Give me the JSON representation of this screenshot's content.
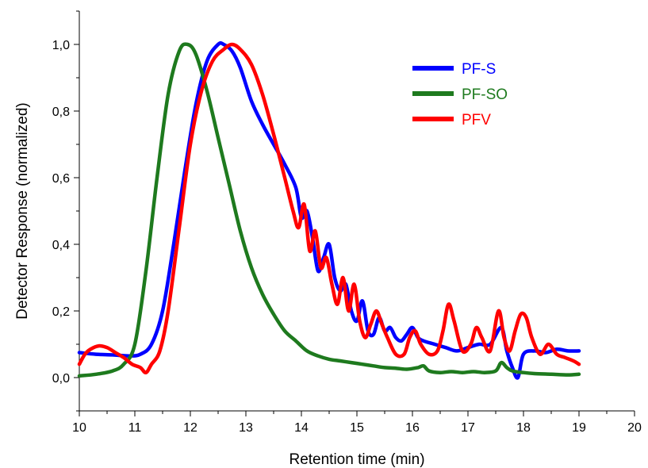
{
  "chart_data": {
    "type": "line",
    "title": "",
    "xlabel": "Retention time (min)",
    "ylabel": "Detector Response (normalized)",
    "xlim": [
      10,
      20
    ],
    "ylim": [
      -0.1,
      1.1
    ],
    "x_ticks": [
      10,
      11,
      12,
      13,
      14,
      15,
      16,
      17,
      18,
      19,
      20
    ],
    "x_tick_labels": [
      "10",
      "11",
      "12",
      "13",
      "14",
      "15",
      "16",
      "17",
      "18",
      "19",
      "20"
    ],
    "y_ticks": [
      0.0,
      0.2,
      0.4,
      0.6,
      0.8,
      1.0
    ],
    "y_tick_labels": [
      "0,0",
      "0,2",
      "0,4",
      "0,6",
      "0,8",
      "1,0"
    ],
    "grid": false,
    "legend_position": "top-right",
    "series": [
      {
        "name": "PF-S",
        "color": "#0000ff",
        "x": [
          10.0,
          10.3,
          10.6,
          10.9,
          11.1,
          11.3,
          11.5,
          11.7,
          11.9,
          12.1,
          12.3,
          12.5,
          12.6,
          12.75,
          12.9,
          13.1,
          13.3,
          13.5,
          13.7,
          13.9,
          14.0,
          14.1,
          14.2,
          14.3,
          14.4,
          14.5,
          14.6,
          14.7,
          14.8,
          14.9,
          15.0,
          15.1,
          15.2,
          15.3,
          15.4,
          15.5,
          15.6,
          15.7,
          15.8,
          15.9,
          16.0,
          16.1,
          16.2,
          16.4,
          16.6,
          16.8,
          17.0,
          17.2,
          17.4,
          17.6,
          17.7,
          17.8,
          17.9,
          18.0,
          18.2,
          18.4,
          18.6,
          18.8,
          19.0
        ],
        "values": [
          0.075,
          0.07,
          0.068,
          0.065,
          0.07,
          0.1,
          0.2,
          0.4,
          0.62,
          0.82,
          0.95,
          1.0,
          1.0,
          0.98,
          0.93,
          0.83,
          0.76,
          0.7,
          0.64,
          0.57,
          0.48,
          0.5,
          0.42,
          0.32,
          0.36,
          0.4,
          0.3,
          0.26,
          0.28,
          0.2,
          0.17,
          0.23,
          0.14,
          0.13,
          0.18,
          0.14,
          0.15,
          0.12,
          0.11,
          0.13,
          0.15,
          0.12,
          0.11,
          0.1,
          0.09,
          0.08,
          0.09,
          0.1,
          0.1,
          0.15,
          0.08,
          0.03,
          0.0,
          0.07,
          0.08,
          0.075,
          0.085,
          0.08,
          0.08
        ]
      },
      {
        "name": "PF-SO",
        "color": "#1e7a1e",
        "x": [
          10.0,
          10.3,
          10.6,
          10.8,
          11.0,
          11.2,
          11.4,
          11.6,
          11.8,
          11.95,
          12.1,
          12.3,
          12.5,
          12.7,
          12.9,
          13.1,
          13.3,
          13.5,
          13.7,
          13.9,
          14.1,
          14.3,
          14.5,
          14.7,
          14.9,
          15.1,
          15.3,
          15.5,
          15.7,
          15.9,
          16.1,
          16.2,
          16.3,
          16.5,
          16.7,
          16.9,
          17.1,
          17.3,
          17.5,
          17.6,
          17.7,
          17.8,
          18.0,
          18.2,
          18.5,
          18.8,
          19.0
        ],
        "values": [
          0.005,
          0.01,
          0.02,
          0.04,
          0.1,
          0.32,
          0.6,
          0.85,
          0.98,
          1.0,
          0.97,
          0.86,
          0.72,
          0.58,
          0.44,
          0.33,
          0.25,
          0.19,
          0.14,
          0.11,
          0.08,
          0.065,
          0.055,
          0.05,
          0.045,
          0.04,
          0.035,
          0.03,
          0.028,
          0.025,
          0.03,
          0.035,
          0.02,
          0.015,
          0.018,
          0.015,
          0.018,
          0.015,
          0.02,
          0.045,
          0.03,
          0.02,
          0.015,
          0.012,
          0.01,
          0.008,
          0.01
        ]
      },
      {
        "name": "PFV",
        "color": "#ff0000",
        "x": [
          10.0,
          10.1,
          10.2,
          10.35,
          10.5,
          10.65,
          10.8,
          10.95,
          11.1,
          11.2,
          11.3,
          11.45,
          11.6,
          11.8,
          12.0,
          12.2,
          12.4,
          12.6,
          12.75,
          12.9,
          13.1,
          13.3,
          13.5,
          13.7,
          13.85,
          13.95,
          14.05,
          14.15,
          14.25,
          14.35,
          14.45,
          14.55,
          14.65,
          14.75,
          14.85,
          14.95,
          15.05,
          15.15,
          15.25,
          15.35,
          15.45,
          15.55,
          15.7,
          15.85,
          15.95,
          16.05,
          16.15,
          16.3,
          16.45,
          16.55,
          16.65,
          16.75,
          16.9,
          17.05,
          17.15,
          17.25,
          17.4,
          17.55,
          17.65,
          17.75,
          17.85,
          17.95,
          18.05,
          18.15,
          18.3,
          18.45,
          18.6,
          18.75,
          18.9,
          19.0
        ],
        "values": [
          0.04,
          0.07,
          0.085,
          0.095,
          0.09,
          0.075,
          0.06,
          0.04,
          0.03,
          0.015,
          0.04,
          0.08,
          0.2,
          0.45,
          0.7,
          0.86,
          0.95,
          0.985,
          1.0,
          0.985,
          0.94,
          0.85,
          0.73,
          0.6,
          0.5,
          0.45,
          0.52,
          0.38,
          0.44,
          0.33,
          0.36,
          0.28,
          0.22,
          0.3,
          0.2,
          0.28,
          0.17,
          0.12,
          0.16,
          0.2,
          0.16,
          0.12,
          0.07,
          0.07,
          0.12,
          0.14,
          0.1,
          0.07,
          0.08,
          0.14,
          0.22,
          0.17,
          0.08,
          0.1,
          0.15,
          0.12,
          0.08,
          0.2,
          0.12,
          0.08,
          0.14,
          0.19,
          0.18,
          0.12,
          0.07,
          0.1,
          0.07,
          0.06,
          0.05,
          0.04
        ]
      }
    ]
  }
}
